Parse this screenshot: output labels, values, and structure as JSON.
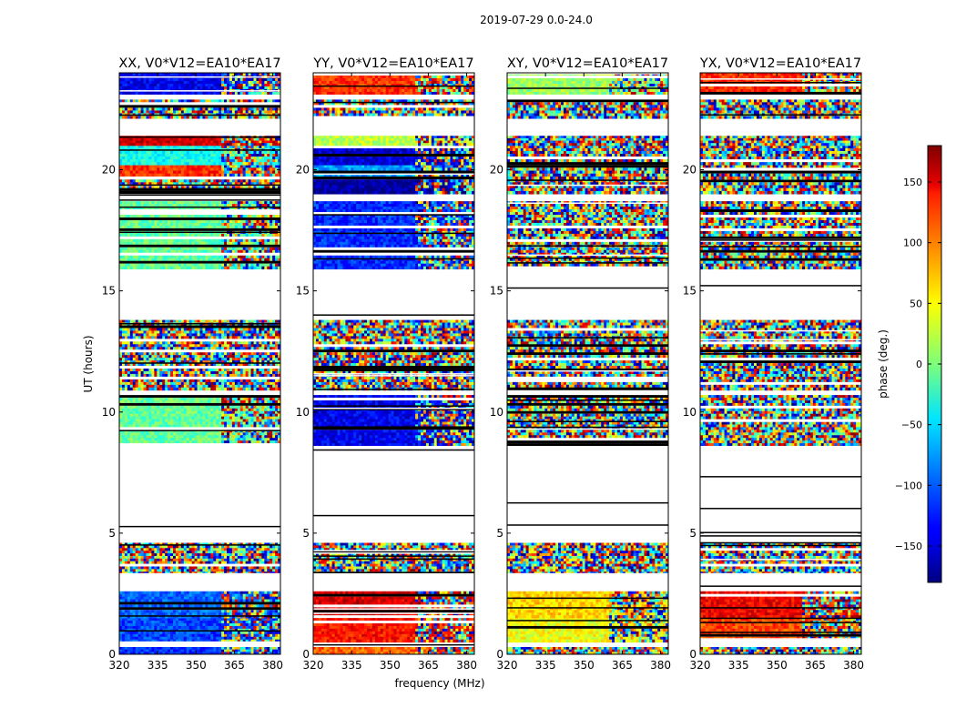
{
  "chart_data": {
    "type": "heatmap",
    "suptitle": "2019-07-29 0.0-24.0",
    "xlabel": "frequency (MHz)",
    "ylabel": "UT (hours)",
    "xlim": [
      320,
      383
    ],
    "ylim": [
      0,
      24
    ],
    "xticks": [
      320,
      335,
      350,
      365,
      380
    ],
    "yticks": [
      0,
      5,
      10,
      15,
      20
    ],
    "colorbar": {
      "label": "phase (deg.)",
      "range": [
        -180,
        180
      ],
      "ticks": [
        -150,
        -100,
        -50,
        0,
        50,
        100,
        150
      ],
      "tick_labels": [
        "−150",
        "−100",
        "−50",
        "0",
        "50",
        "100",
        "150"
      ],
      "colormap": "jet"
    },
    "flagged_ut_ranges_hours": [
      [
        7.5,
        8.6
      ],
      [
        5.1,
        7.5
      ],
      [
        13.9,
        15.0
      ],
      [
        15.0,
        15.2
      ],
      [
        21.8,
        22.1
      ],
      [
        18.75,
        18.9
      ],
      [
        3.05,
        3.35
      ],
      [
        22.9,
        23.1
      ]
    ],
    "panels": [
      {
        "title": "XX, V0*V12=EA10*EA17",
        "bands": [
          {
            "ut": [
              0.0,
              0.3
            ],
            "phase": -120
          },
          {
            "ut": [
              0.5,
              1.5
            ],
            "phase": -110
          },
          {
            "ut": [
              1.5,
              2.6
            ],
            "phase": -100
          },
          {
            "ut": [
              3.3,
              4.6
            ],
            "phase": null
          },
          {
            "ut": [
              8.6,
              10.7
            ],
            "phase": -10
          },
          {
            "ut": [
              10.9,
              13.8
            ],
            "phase": null
          },
          {
            "ut": [
              15.9,
              18.7
            ],
            "phase": -10
          },
          {
            "ut": [
              19.0,
              19.6
            ],
            "phase": null
          },
          {
            "ut": [
              19.6,
              20.2
            ],
            "phase": 120
          },
          {
            "ut": [
              20.2,
              21.0
            ],
            "phase": -40
          },
          {
            "ut": [
              21.0,
              21.4
            ],
            "phase": 150
          },
          {
            "ut": [
              22.1,
              22.9
            ],
            "phase": null
          },
          {
            "ut": [
              23.1,
              24.0
            ],
            "phase": -140
          }
        ]
      },
      {
        "title": "YY, V0*V12=EA10*EA17",
        "bands": [
          {
            "ut": [
              0.0,
              0.3
            ],
            "phase": 100
          },
          {
            "ut": [
              0.5,
              1.5
            ],
            "phase": 130
          },
          {
            "ut": [
              1.5,
              2.6
            ],
            "phase": 150
          },
          {
            "ut": [
              3.3,
              4.6
            ],
            "phase": null
          },
          {
            "ut": [
              8.6,
              10.7
            ],
            "phase": -140
          },
          {
            "ut": [
              10.9,
              13.8
            ],
            "phase": null
          },
          {
            "ut": [
              15.9,
              18.7
            ],
            "phase": -120
          },
          {
            "ut": [
              19.0,
              19.6
            ],
            "phase": -170
          },
          {
            "ut": [
              19.6,
              20.2
            ],
            "phase": -80
          },
          {
            "ut": [
              20.2,
              21.0
            ],
            "phase": -150
          },
          {
            "ut": [
              21.0,
              21.4
            ],
            "phase": 20
          },
          {
            "ut": [
              22.1,
              22.9
            ],
            "phase": null
          },
          {
            "ut": [
              23.1,
              24.0
            ],
            "phase": 120
          }
        ]
      },
      {
        "title": "XY, V0*V12=EA10*EA17",
        "bands": [
          {
            "ut": [
              0.0,
              0.3
            ],
            "phase": null
          },
          {
            "ut": [
              0.5,
              1.5
            ],
            "phase": 40
          },
          {
            "ut": [
              1.5,
              2.6
            ],
            "phase": 60
          },
          {
            "ut": [
              3.3,
              4.6
            ],
            "phase": null
          },
          {
            "ut": [
              8.6,
              10.7
            ],
            "phase": null
          },
          {
            "ut": [
              10.9,
              13.8
            ],
            "phase": null
          },
          {
            "ut": [
              15.9,
              18.7
            ],
            "phase": null
          },
          {
            "ut": [
              19.0,
              19.6
            ],
            "phase": null
          },
          {
            "ut": [
              19.6,
              20.2
            ],
            "phase": null
          },
          {
            "ut": [
              20.2,
              21.0
            ],
            "phase": null
          },
          {
            "ut": [
              21.0,
              21.4
            ],
            "phase": null
          },
          {
            "ut": [
              22.1,
              22.9
            ],
            "phase": null
          },
          {
            "ut": [
              23.1,
              24.0
            ],
            "phase": 10
          }
        ]
      },
      {
        "title": "YX, V0*V12=EA10*EA17",
        "bands": [
          {
            "ut": [
              0.0,
              0.3
            ],
            "phase": null
          },
          {
            "ut": [
              0.5,
              1.5
            ],
            "phase": 110
          },
          {
            "ut": [
              1.5,
              2.6
            ],
            "phase": 140
          },
          {
            "ut": [
              3.3,
              4.6
            ],
            "phase": null
          },
          {
            "ut": [
              8.6,
              10.7
            ],
            "phase": null
          },
          {
            "ut": [
              10.9,
              13.8
            ],
            "phase": null
          },
          {
            "ut": [
              15.9,
              18.7
            ],
            "phase": null
          },
          {
            "ut": [
              19.0,
              19.6
            ],
            "phase": null
          },
          {
            "ut": [
              19.6,
              20.2
            ],
            "phase": null
          },
          {
            "ut": [
              20.2,
              21.0
            ],
            "phase": null
          },
          {
            "ut": [
              21.0,
              21.4
            ],
            "phase": null
          },
          {
            "ut": [
              22.1,
              22.9
            ],
            "phase": null
          },
          {
            "ut": [
              23.1,
              24.0
            ],
            "phase": 120
          }
        ]
      }
    ]
  }
}
